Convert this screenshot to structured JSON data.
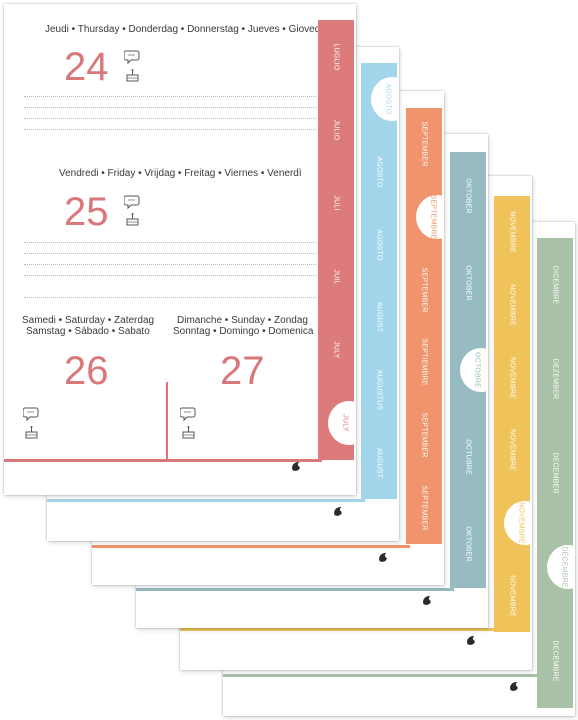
{
  "colors": {
    "coral": "#dd7a7b",
    "sky": "#a3d6eb",
    "orange": "#ef946c",
    "teal": "#96bcc2",
    "yellow": "#efc35a",
    "sage": "#a9c1a7"
  },
  "pages": [
    {
      "id": "sage",
      "labels": [
        "DICEMBRE",
        "DEZEMBER",
        "DECEMBER",
        "DÉCEMBRE",
        "DECEMBRE"
      ],
      "active_index": 3
    },
    {
      "id": "yellow",
      "labels": [
        "NOVEMBRE",
        "NOVEMBRE",
        "NOVEMBRE",
        "NOVEMBRE",
        "NOVEMBRE",
        "NOVEMBRE"
      ],
      "active_index": 4
    },
    {
      "id": "teal",
      "labels": [
        "OKTOBER",
        "OKTOBER",
        "OCTOBRE",
        "OCTUBRE",
        "OKTOBER"
      ],
      "active_index": 2
    },
    {
      "id": "orange",
      "labels": [
        "SEPTEMBER",
        "SEPTEMBRE",
        "SEPTEMBER",
        "SEPTIEMBRE",
        "SEPTEMBER",
        "SEPTEMBER"
      ],
      "active_index": 1
    },
    {
      "id": "sky",
      "labels": [
        "AGOSTO",
        "AGOSTO",
        "AGOSTO",
        "AUGUST",
        "AUGUSTUS",
        "AUGUST"
      ],
      "active_index": 0
    },
    {
      "id": "coral",
      "labels": [
        "LUGLIO",
        "JULIO",
        "JULI",
        "JUIL",
        "JULY",
        "JULY"
      ],
      "active_index": 5
    }
  ],
  "front": {
    "days": [
      {
        "names": "Jeudi • Thursday • Donderdag • Donnerstag • Jueves • Giovedì",
        "number": "24"
      },
      {
        "names": "Vendredi • Friday • Vrijdag • Freitag • Viernes • Venerdì",
        "number": "25"
      },
      {
        "names_line1": "Samedi • Saturday • Zaterdag",
        "names_line2": "Samstag • Sábado • Sabato",
        "number": "26"
      },
      {
        "names_line1": "Dimanche • Sunday • Zondag",
        "names_line2": "Sonntag • Domingo • Domenica",
        "number": "27"
      }
    ]
  },
  "icons": {
    "note": "speech-bubble-icon",
    "birthday": "cake-icon",
    "brand": "brand-logo-icon"
  }
}
